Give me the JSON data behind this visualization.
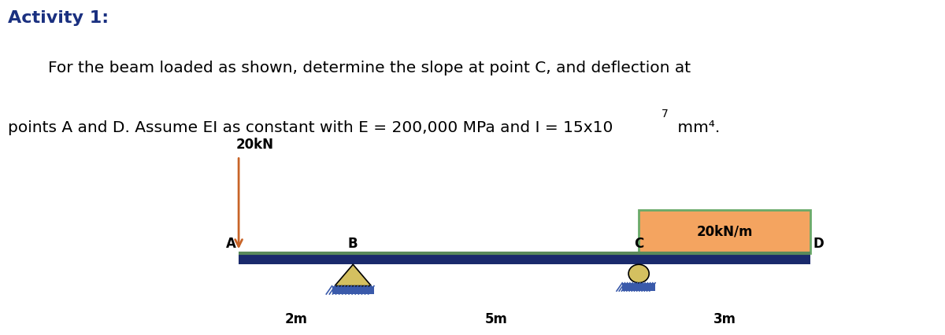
{
  "title_bold": "Activity 1:",
  "title_color": "#1a3080",
  "body_text_line1": "        For the beam loaded as shown, determine the slope at point C, and deflection at",
  "body_text_line2": "points A and D. Assume EI as constant with E = 200,000 MPa and I = 15x10",
  "body_text_line2_super": "7",
  "body_text_line2_end": " mm⁴.",
  "body_fontsize": 14.5,
  "title_fontsize": 16,
  "beam_color": "#1a2a6c",
  "beam_top_color": "#5a8a5a",
  "beam_x_start": 0.0,
  "beam_x_end": 10.0,
  "beam_y_top": 0.0,
  "beam_height": 0.22,
  "point_A_x": 0.0,
  "point_B_x": 2.0,
  "point_C_x": 7.0,
  "point_D_x": 10.0,
  "label_A": "A",
  "label_B": "B",
  "label_C": "C",
  "label_D": "D",
  "dist_load_label": "20kN/m",
  "dist_load_color": "#f4a460",
  "dist_load_border": "#6aaa6a",
  "dist_load_x_start": 7.0,
  "dist_load_x_end": 10.0,
  "dist_load_height": 0.85,
  "point_load_label": "20kN",
  "point_load_x": 0.0,
  "point_load_arrow_color": "#c86428",
  "support_B_x": 2.0,
  "support_C_x": 7.0,
  "support_pin_color": "#d4c060",
  "support_roller_color": "#d4c060",
  "hatch_color": "#3a5aaa",
  "span_AB": "2m",
  "span_BC": "5m",
  "span_CD": "3m",
  "bg_color": "#ffffff",
  "text_color": "#000000",
  "xlim_left": -1.2,
  "xlim_right": 11.2,
  "ylim_bottom": -1.6,
  "ylim_top": 2.2
}
